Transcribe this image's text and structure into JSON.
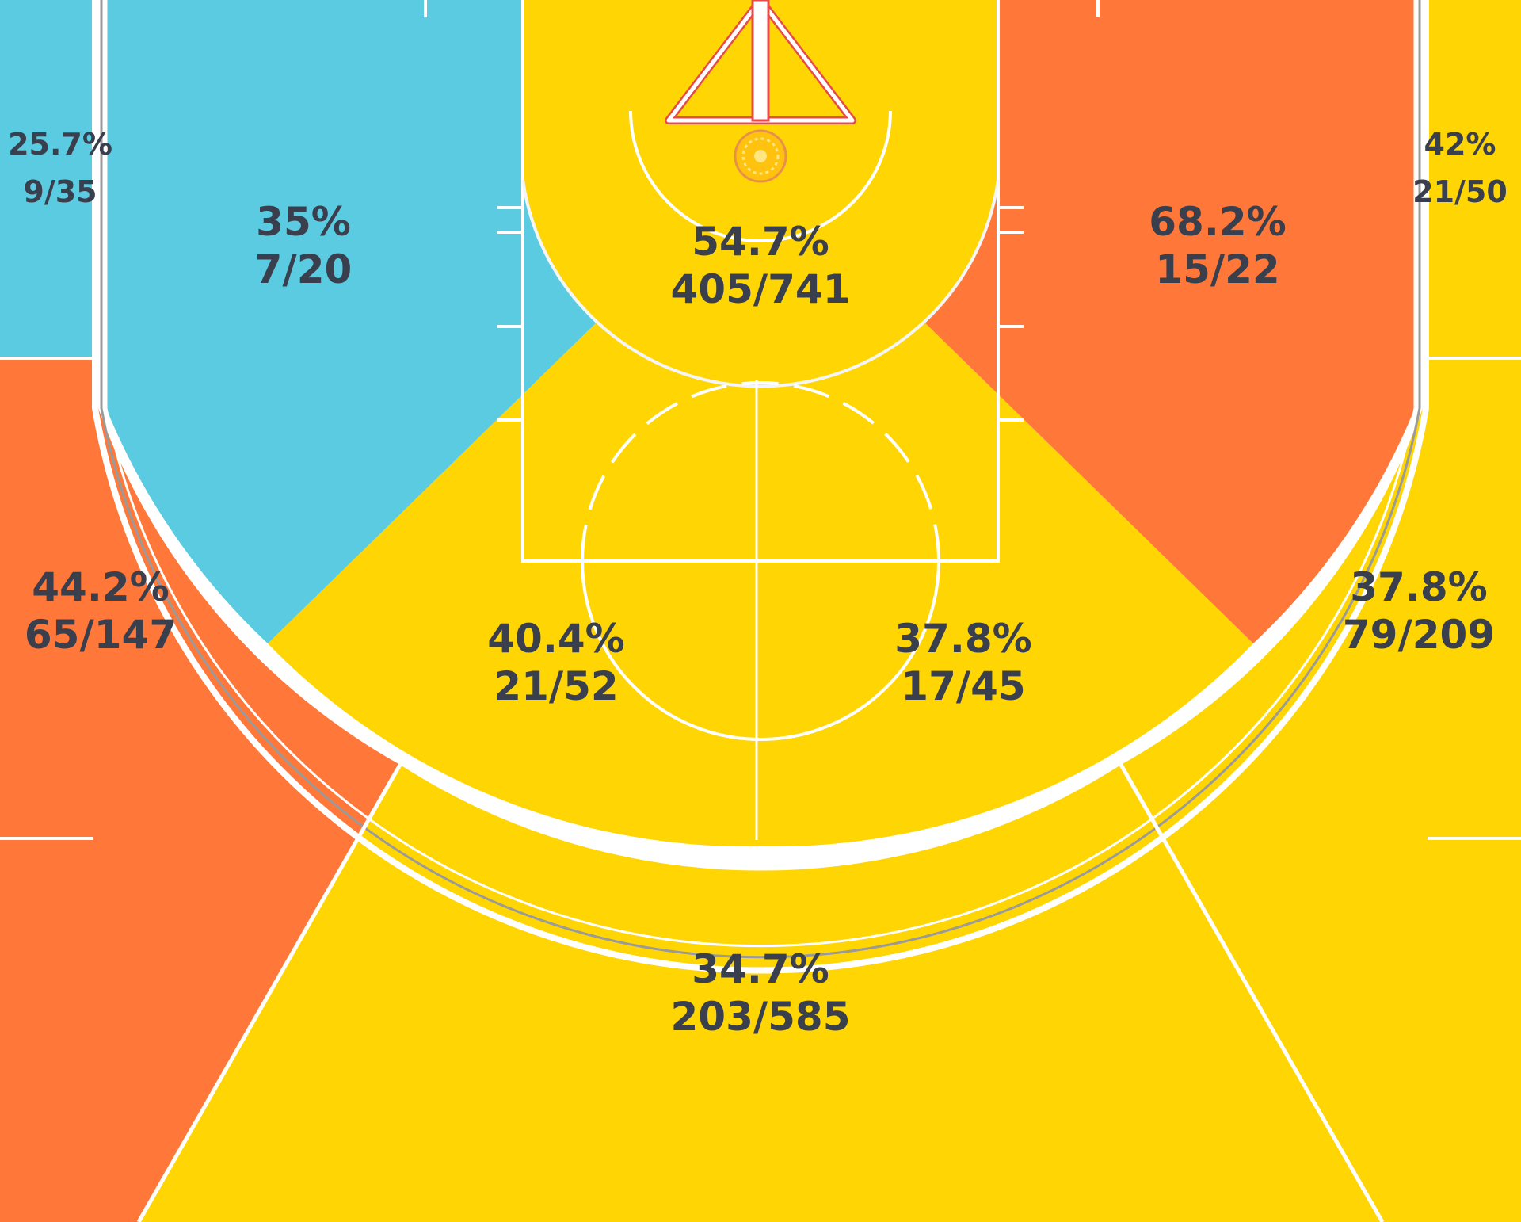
{
  "chart_data": {
    "type": "heatmap",
    "colors": {
      "hot": "#ff7839",
      "avg": "#ffd504",
      "cold": "#5acbe0",
      "lines": "#ffffff",
      "text": "#3a3f4e",
      "rim": "#ffc20e"
    },
    "zones": [
      {
        "id": "corner-three-left",
        "pct": "25.7%",
        "made_attempted": "9/35",
        "made": 9,
        "attempted": 35,
        "rating": "cold"
      },
      {
        "id": "corner-three-right",
        "pct": "42%",
        "made_attempted": "21/50",
        "made": 21,
        "attempted": 50,
        "rating": "avg"
      },
      {
        "id": "short-baseline-left",
        "pct": "35%",
        "made_attempted": "7/20",
        "made": 7,
        "attempted": 20,
        "rating": "cold"
      },
      {
        "id": "restricted-area",
        "pct": "54.7%",
        "made_attempted": "405/741",
        "made": 405,
        "attempted": 741,
        "rating": "avg"
      },
      {
        "id": "short-baseline-right",
        "pct": "68.2%",
        "made_attempted": "15/22",
        "made": 15,
        "attempted": 22,
        "rating": "hot"
      },
      {
        "id": "wing-three-left",
        "pct": "44.2%",
        "made_attempted": "65/147",
        "made": 65,
        "attempted": 147,
        "rating": "hot"
      },
      {
        "id": "mid-range-left",
        "pct": "40.4%",
        "made_attempted": "21/52",
        "made": 21,
        "attempted": 52,
        "rating": "avg"
      },
      {
        "id": "mid-range-right",
        "pct": "37.8%",
        "made_attempted": "17/45",
        "made": 17,
        "attempted": 45,
        "rating": "avg"
      },
      {
        "id": "wing-three-right",
        "pct": "37.8%",
        "made_attempted": "79/209",
        "made": 79,
        "attempted": 209,
        "rating": "avg"
      },
      {
        "id": "top-of-key-three",
        "pct": "34.7%",
        "made_attempted": "203/585",
        "made": 203,
        "attempted": 585,
        "rating": "avg"
      }
    ]
  }
}
